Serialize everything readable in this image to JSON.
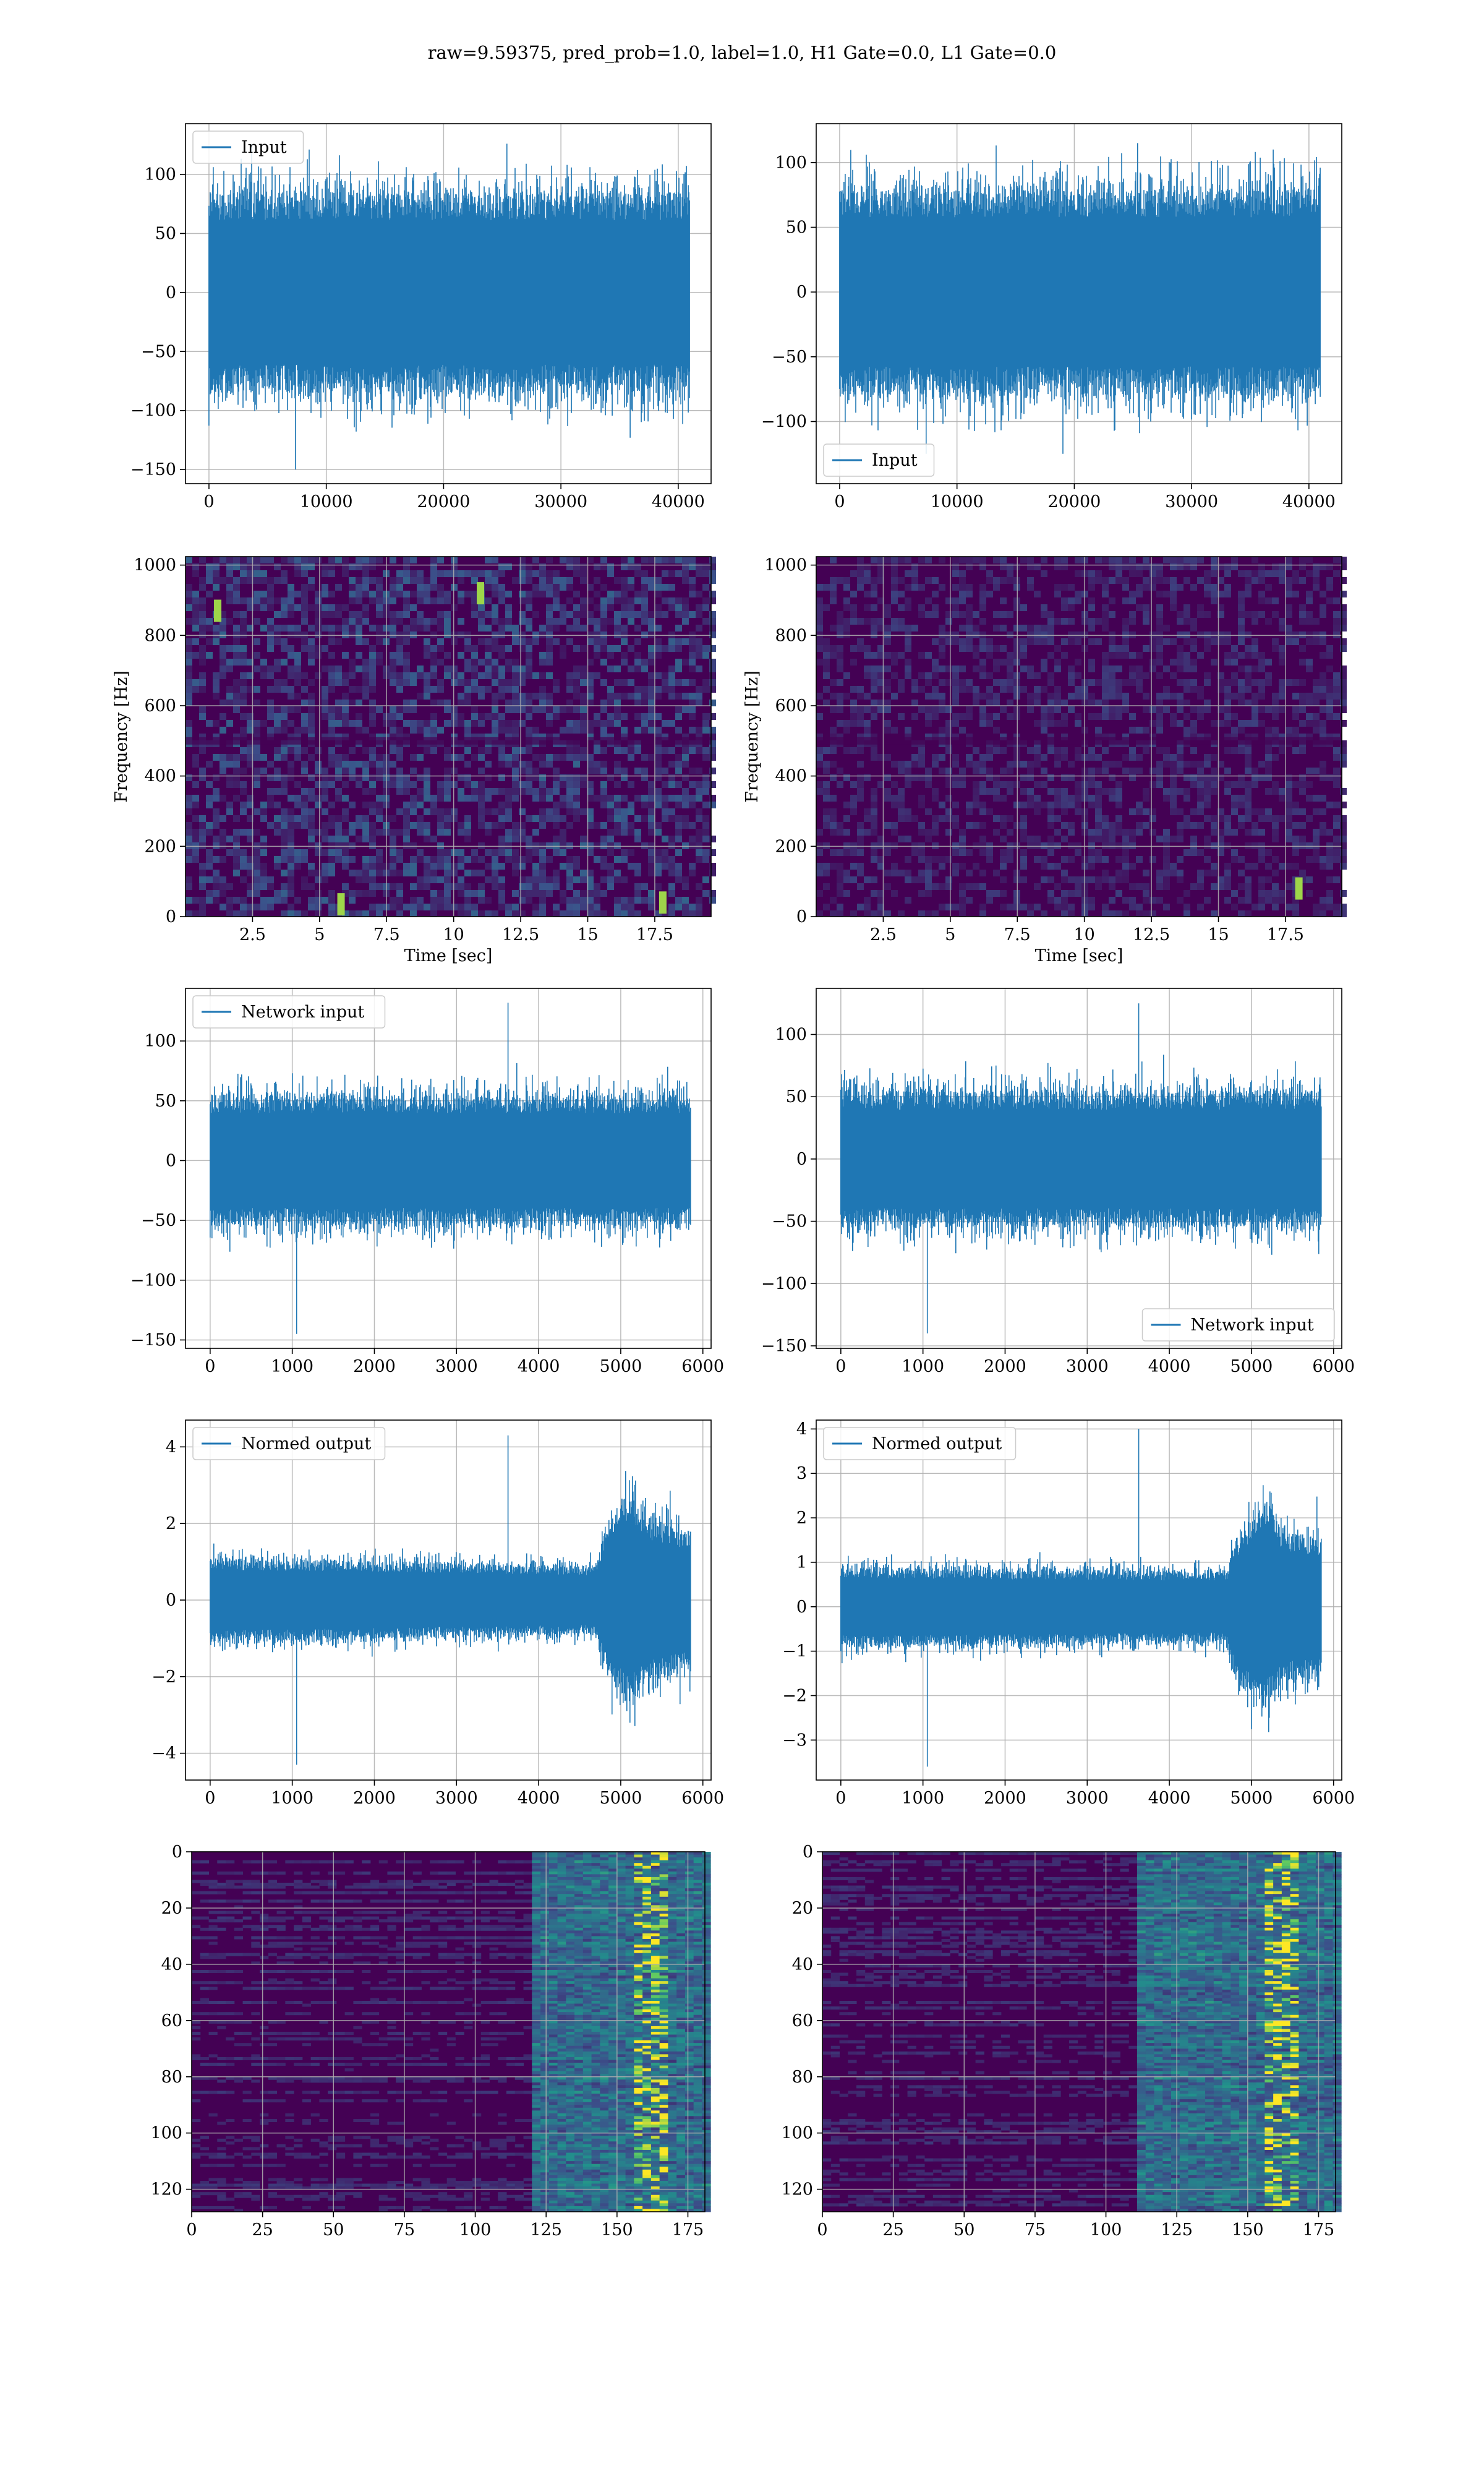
{
  "figure": {
    "title": "raw=9.59375, pred_prob=1.0, label=1.0, H1 Gate=0.0, L1 Gate=0.0"
  },
  "colors": {
    "series": "#1f77b4",
    "grid": "#b0b0b0",
    "viridis_low": "#440154",
    "viridis_mid": "#21918c",
    "viridis_high": "#fde725"
  },
  "chart_data": [
    {
      "id": "row1-left",
      "type": "line",
      "legend": [
        "Input"
      ],
      "legend_loc": "upper left",
      "xlim": [
        -2000,
        42800
      ],
      "ylim": [
        -162,
        143
      ],
      "xticks": [
        0,
        10000,
        20000,
        30000,
        40000
      ],
      "yticks": [
        -150,
        -100,
        -50,
        0,
        50,
        100
      ],
      "xlabel": "",
      "ylabel": "",
      "grid": true,
      "signal": {
        "n": 40960,
        "x_start": 0,
        "x_end": 40960,
        "envelope": [
          [
            0,
            85,
            -85
          ],
          [
            40960,
            85,
            -85
          ]
        ],
        "max": 126,
        "min": -150
      }
    },
    {
      "id": "row1-right",
      "type": "line",
      "legend": [
        "Input"
      ],
      "legend_loc": "lower left",
      "xlim": [
        -2000,
        42800
      ],
      "ylim": [
        -148,
        130
      ],
      "xticks": [
        0,
        10000,
        20000,
        30000,
        40000
      ],
      "yticks": [
        -100,
        -50,
        0,
        50,
        100
      ],
      "xlabel": "",
      "ylabel": "",
      "grid": true,
      "signal": {
        "n": 40960,
        "x_start": 0,
        "x_end": 40960,
        "envelope": [
          [
            0,
            80,
            -80
          ],
          [
            40960,
            80,
            -80
          ]
        ],
        "max": 115,
        "min": -125
      }
    },
    {
      "id": "row2-left",
      "type": "heatmap",
      "xlim": [
        0.0,
        19.6
      ],
      "ylim": [
        0,
        1024
      ],
      "xticks": [
        2.5,
        5.0,
        7.5,
        10.0,
        12.5,
        15.0,
        17.5
      ],
      "yticks": [
        0,
        200,
        400,
        600,
        800,
        1000
      ],
      "xlabel": "Time [sec]",
      "ylabel": "Frequency [Hz]",
      "grid": true,
      "colormap": "viridis",
      "intensity": 0.3,
      "band_y": 500,
      "hotspots": [
        [
          17.8,
          40
        ],
        [
          5.8,
          35
        ],
        [
          1.2,
          870
        ],
        [
          11.0,
          920
        ]
      ]
    },
    {
      "id": "row2-right",
      "type": "heatmap",
      "xlim": [
        0.0,
        19.6
      ],
      "ylim": [
        0,
        1024
      ],
      "xticks": [
        2.5,
        5.0,
        7.5,
        10.0,
        12.5,
        15.0,
        17.5
      ],
      "yticks": [
        0,
        200,
        400,
        600,
        800,
        1000
      ],
      "xlabel": "Time [sec]",
      "ylabel": "Frequency [Hz]",
      "grid": true,
      "colormap": "viridis",
      "intensity": 0.18,
      "band_y": 500,
      "hotspots": [
        [
          18.0,
          80
        ]
      ]
    },
    {
      "id": "row3-left",
      "type": "line",
      "legend": [
        "Network input"
      ],
      "legend_loc": "upper left",
      "xlim": [
        -300,
        6100
      ],
      "ylim": [
        -157,
        144
      ],
      "xticks": [
        0,
        1000,
        2000,
        3000,
        4000,
        5000,
        6000
      ],
      "yticks": [
        -150,
        -100,
        -50,
        0,
        50,
        100
      ],
      "xlabel": "",
      "ylabel": "",
      "grid": true,
      "signal": {
        "n": 5850,
        "x_start": 0,
        "x_end": 5850,
        "envelope": [
          [
            0,
            55,
            -55
          ],
          [
            5850,
            55,
            -55
          ]
        ],
        "max": 132,
        "min": -145
      }
    },
    {
      "id": "row3-right",
      "type": "line",
      "legend": [
        "Network input"
      ],
      "legend_loc": "lower right",
      "xlim": [
        -300,
        6100
      ],
      "ylim": [
        -152,
        137
      ],
      "xticks": [
        0,
        1000,
        2000,
        3000,
        4000,
        5000,
        6000
      ],
      "yticks": [
        -150,
        -100,
        -50,
        0,
        50,
        100
      ],
      "xlabel": "",
      "ylabel": "",
      "grid": true,
      "signal": {
        "n": 5850,
        "x_start": 0,
        "x_end": 5850,
        "envelope": [
          [
            0,
            55,
            -55
          ],
          [
            5850,
            55,
            -55
          ]
        ],
        "max": 125,
        "min": -140
      }
    },
    {
      "id": "row4-left",
      "type": "line",
      "legend": [
        "Normed output"
      ],
      "legend_loc": "upper left",
      "xlim": [
        -300,
        6100
      ],
      "ylim": [
        -4.7,
        4.7
      ],
      "xticks": [
        0,
        1000,
        2000,
        3000,
        4000,
        5000,
        6000
      ],
      "yticks": [
        -4,
        -2,
        0,
        2,
        4
      ],
      "xlabel": "",
      "ylabel": "",
      "grid": true,
      "signal": {
        "n": 5850,
        "x_start": 0,
        "x_end": 5850,
        "envelope": [
          [
            0,
            1.1,
            -1.1
          ],
          [
            4700,
            0.9,
            -0.9
          ],
          [
            4800,
            1.8,
            -1.8
          ],
          [
            5100,
            2.8,
            -2.8
          ],
          [
            5300,
            2.2,
            -2.2
          ],
          [
            5850,
            1.8,
            -1.8
          ]
        ],
        "max": 4.3,
        "min": -4.3
      }
    },
    {
      "id": "row4-right",
      "type": "line",
      "legend": [
        "Normed output"
      ],
      "legend_loc": "upper left",
      "xlim": [
        -300,
        6100
      ],
      "ylim": [
        -3.9,
        4.2
      ],
      "xticks": [
        0,
        1000,
        2000,
        3000,
        4000,
        5000,
        6000
      ],
      "yticks": [
        -3,
        -2,
        -1,
        0,
        1,
        2,
        3,
        4
      ],
      "xlabel": "",
      "ylabel": "",
      "grid": true,
      "signal": {
        "n": 5850,
        "x_start": 0,
        "x_end": 5850,
        "envelope": [
          [
            0,
            0.9,
            -0.9
          ],
          [
            4700,
            0.8,
            -0.8
          ],
          [
            4800,
            1.5,
            -1.5
          ],
          [
            5150,
            2.4,
            -2.4
          ],
          [
            5400,
            1.7,
            -1.7
          ],
          [
            5850,
            1.6,
            -1.6
          ]
        ],
        "max": 4.0,
        "min": -3.6
      }
    },
    {
      "id": "row5-left",
      "type": "heatmap",
      "xlim": [
        0,
        181
      ],
      "ylim": [
        128,
        0
      ],
      "xticks": [
        0,
        25,
        50,
        75,
        100,
        125,
        150,
        175
      ],
      "yticks": [
        0,
        20,
        40,
        60,
        80,
        100,
        120
      ],
      "xlabel": "",
      "ylabel": "",
      "grid": true,
      "colormap": "viridis",
      "activity_start": 120,
      "hot_column": 160
    },
    {
      "id": "row5-right",
      "type": "heatmap",
      "xlim": [
        0,
        181
      ],
      "ylim": [
        128,
        0
      ],
      "xticks": [
        0,
        25,
        50,
        75,
        100,
        125,
        150,
        175
      ],
      "yticks": [
        0,
        20,
        40,
        60,
        80,
        100,
        120
      ],
      "xlabel": "",
      "ylabel": "",
      "grid": true,
      "colormap": "viridis",
      "activity_start": 110,
      "hot_column": 160
    }
  ]
}
